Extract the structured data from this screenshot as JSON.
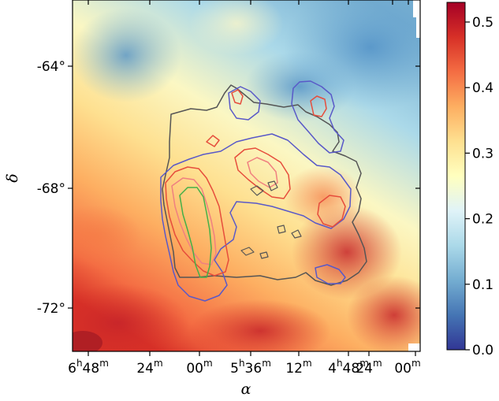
{
  "chart_data": {
    "type": "heatmap",
    "title": "",
    "xlabel": "α",
    "ylabel": "δ",
    "x_ticks": [
      {
        "label": "6",
        "sup": "h",
        "label2": "48",
        "sup2": "m"
      },
      {
        "label": "24",
        "sup": "m"
      },
      {
        "label": "00",
        "sup": "m"
      },
      {
        "label": "5",
        "sup": "h",
        "label2": "36",
        "sup2": "m"
      },
      {
        "label": "12",
        "sup": "m"
      },
      {
        "label": "4",
        "sup": "h",
        "label2": "48",
        "sup2": "m"
      },
      {
        "label": "24",
        "sup": "m"
      },
      {
        "label": "00",
        "sup": "m"
      }
    ],
    "y_ticks": [
      "-64°",
      "-68°",
      "-72°"
    ],
    "colorbar": {
      "min": 0.0,
      "max": 0.53,
      "ticks": [
        "0.0",
        "0.1",
        "0.2",
        "0.3",
        "0.4",
        "0.5"
      ],
      "tick_values": [
        0.0,
        0.1,
        0.2,
        0.3,
        0.4,
        0.5
      ],
      "colormap": "RdYlBu_r"
    },
    "background_colors": {
      "low": "#5aa0cf",
      "mid": "#fbf7c3",
      "high": "#d73027"
    },
    "contour_colors": [
      "#5959c8",
      "#e64d3c",
      "#f08080",
      "#44b048",
      "#555555"
    ]
  }
}
